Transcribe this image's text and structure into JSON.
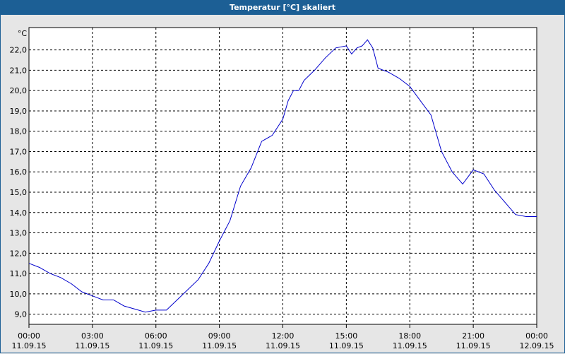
{
  "window": {
    "title": "Temperatur [°C] skaliert"
  },
  "chart_data": {
    "type": "line",
    "title": "Temperatur [°C] skaliert",
    "ylabel": "°C",
    "xlabel": "",
    "ylim": [
      8.5,
      23.1
    ],
    "yticks": [
      "9,0",
      "10,0",
      "11,0",
      "12,0",
      "13,0",
      "14,0",
      "15,0",
      "16,0",
      "17,0",
      "18,0",
      "19,0",
      "20,0",
      "21,0",
      "22,0"
    ],
    "xlim_hours": [
      0,
      24
    ],
    "xticks": [
      {
        "time": "00:00",
        "date": "11.09.15"
      },
      {
        "time": "03:00",
        "date": "11.09.15"
      },
      {
        "time": "06:00",
        "date": "11.09.15"
      },
      {
        "time": "09:00",
        "date": "11.09.15"
      },
      {
        "time": "12:00",
        "date": "11.09.15"
      },
      {
        "time": "15:00",
        "date": "11.09.15"
      },
      {
        "time": "18:00",
        "date": "11.09.15"
      },
      {
        "time": "21:00",
        "date": "11.09.15"
      },
      {
        "time": "00:00",
        "date": "12.09.15"
      }
    ],
    "grid": true,
    "line_color": "#0000cc",
    "series": [
      {
        "x": [
          0,
          0.5,
          1,
          1.5,
          2,
          2.5,
          3,
          3.5,
          4,
          4.5,
          5,
          5.5,
          6,
          6.5,
          7,
          7.5,
          8,
          8.5,
          9,
          9.5,
          10,
          10.5,
          11,
          11.5,
          12,
          12.25,
          12.5,
          12.75,
          13,
          13.5,
          14,
          14.5,
          15,
          15.25,
          15.5,
          15.75,
          16,
          16.25,
          16.5,
          17,
          17.5,
          18,
          18.5,
          19,
          19.5,
          20,
          20.5,
          21,
          21.5,
          22,
          22.5,
          23,
          23.5,
          24
        ],
        "y": [
          11.5,
          11.3,
          11.0,
          10.8,
          10.5,
          10.1,
          9.9,
          9.7,
          9.7,
          9.4,
          9.25,
          9.1,
          9.2,
          9.2,
          9.7,
          10.2,
          10.7,
          11.5,
          12.6,
          13.6,
          15.3,
          16.2,
          17.5,
          17.8,
          18.6,
          19.5,
          20.0,
          20.0,
          20.5,
          21.0,
          21.6,
          22.1,
          22.2,
          21.8,
          22.1,
          22.2,
          22.5,
          22.1,
          21.1,
          20.9,
          20.6,
          20.2,
          19.5,
          18.8,
          17.0,
          16.0,
          15.4,
          16.1,
          15.9,
          15.1,
          14.5,
          13.9,
          13.8,
          13.8
        ]
      }
    ]
  }
}
